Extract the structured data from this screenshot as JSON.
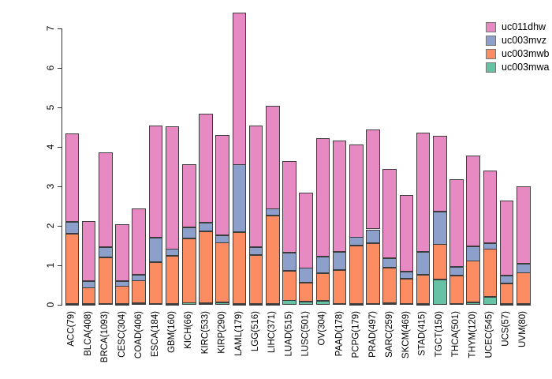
{
  "chart_data": {
    "type": "bar",
    "stacked": true,
    "title": "",
    "xlabel": "",
    "ylabel": "",
    "ylim": [
      0,
      7.4
    ],
    "yticks": [
      0,
      1,
      2,
      3,
      4,
      5,
      6,
      7
    ],
    "grid": false,
    "legend_position": "top-right",
    "categories": [
      "ACC(79)",
      "BLCA(408)",
      "BRCA(1093)",
      "CESC(304)",
      "COAD(406)",
      "ESCA(184)",
      "GBM(160)",
      "KICH(66)",
      "KIRC(533)",
      "KIRP(290)",
      "LAML(179)",
      "LGG(516)",
      "LIHC(371)",
      "LUAD(515)",
      "LUSC(501)",
      "OV(304)",
      "PAAD(178)",
      "PCPG(179)",
      "PRAD(497)",
      "SARC(259)",
      "SKCM(469)",
      "STAD(415)",
      "TGCT(150)",
      "THCA(501)",
      "THYM(120)",
      "UCEC(545)",
      "UCS(57)",
      "UVM(80)"
    ],
    "series": [
      {
        "name": "uc003mwa",
        "color": "#66C2A5",
        "values": [
          0.02,
          0.02,
          0.03,
          0.02,
          0.03,
          0.03,
          0.02,
          0.05,
          0.04,
          0.05,
          0.02,
          0.02,
          0.02,
          0.11,
          0.08,
          0.1,
          0.03,
          0.02,
          0.03,
          0.04,
          0.03,
          0.02,
          0.63,
          0.03,
          0.06,
          0.19,
          0.02,
          0.02
        ]
      },
      {
        "name": "uc003mwb",
        "color": "#FC8D62",
        "values": [
          1.78,
          0.41,
          1.17,
          0.45,
          0.58,
          1.05,
          1.21,
          1.63,
          1.82,
          1.52,
          1.82,
          1.24,
          2.24,
          0.75,
          0.48,
          0.7,
          0.85,
          1.48,
          1.53,
          0.9,
          0.63,
          0.74,
          0.9,
          0.71,
          1.05,
          1.22,
          0.52,
          0.79
        ]
      },
      {
        "name": "uc003mvz",
        "color": "#8DA0CB",
        "values": [
          0.3,
          0.17,
          0.26,
          0.13,
          0.15,
          0.62,
          0.18,
          0.28,
          0.22,
          0.19,
          1.71,
          0.2,
          0.17,
          0.46,
          0.37,
          0.42,
          0.46,
          0.21,
          0.34,
          0.24,
          0.18,
          0.58,
          0.83,
          0.22,
          0.37,
          0.15,
          0.2,
          0.23
        ]
      },
      {
        "name": "uc011dhw",
        "color": "#E78AC3",
        "values": [
          2.24,
          1.52,
          2.39,
          1.43,
          1.68,
          2.83,
          3.11,
          1.6,
          2.76,
          2.55,
          3.85,
          3.08,
          2.61,
          2.31,
          1.91,
          2.99,
          2.82,
          2.35,
          2.53,
          2.26,
          1.94,
          3.02,
          1.92,
          2.21,
          2.3,
          1.84,
          1.9,
          1.96
        ]
      }
    ],
    "legend_entries_top_to_bottom": [
      "uc011dhw",
      "uc003mvz",
      "uc003mwb",
      "uc003mwa"
    ]
  }
}
